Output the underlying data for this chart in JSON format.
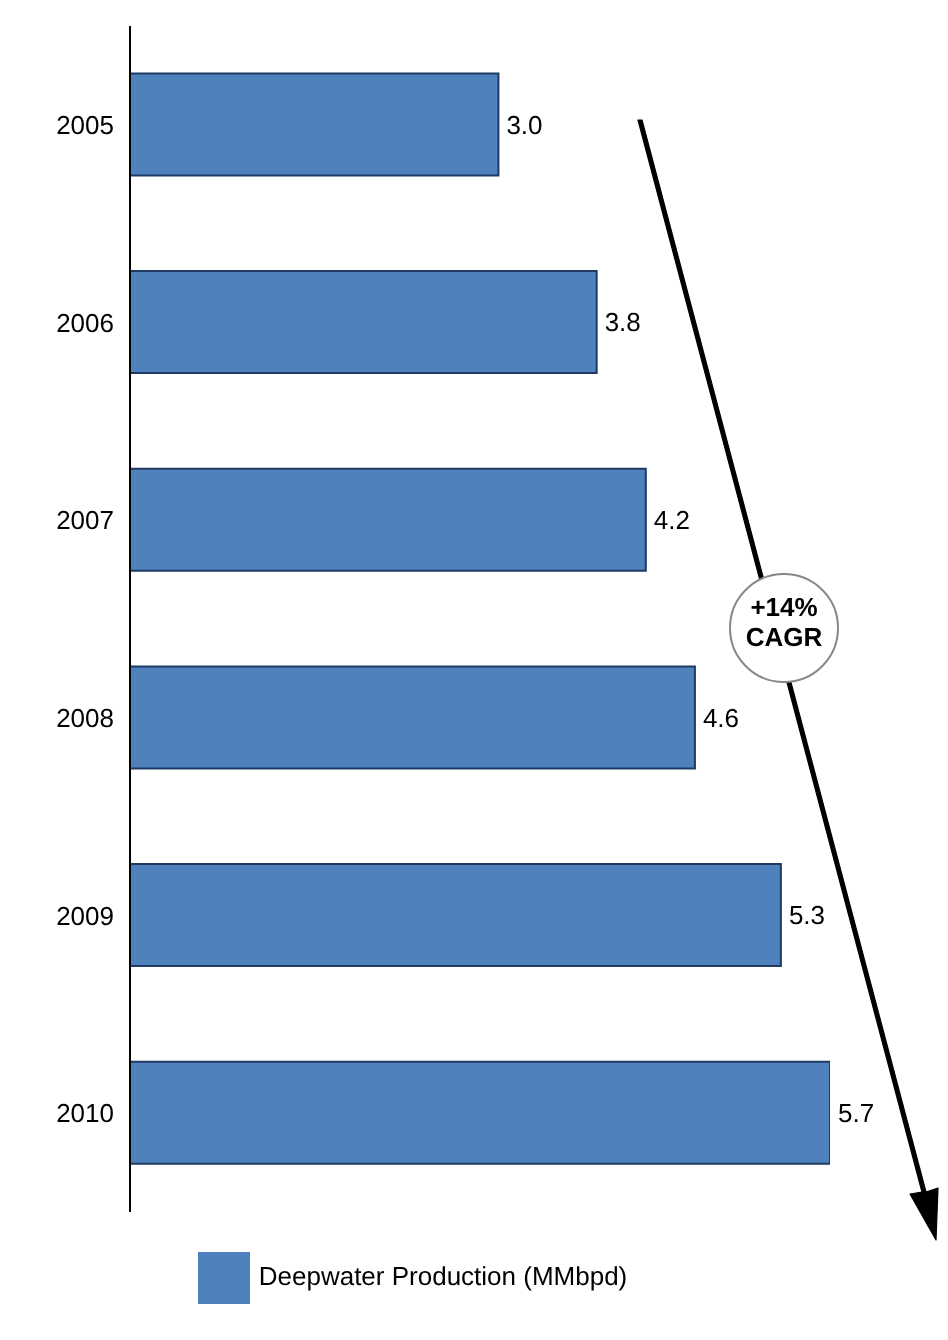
{
  "chart_data": {
    "type": "bar",
    "orientation": "horizontal",
    "categories": [
      "2005",
      "2006",
      "2007",
      "2008",
      "2009",
      "2010"
    ],
    "series": [
      {
        "name": "Deepwater Production (MMbpd)",
        "color": "#4f81bd",
        "values": [
          3.0,
          3.8,
          4.2,
          4.6,
          5.3,
          5.7
        ],
        "value_labels": [
          "3.0",
          "3.8",
          "4.2",
          "4.6",
          "5.3",
          "5.7"
        ]
      }
    ],
    "legend": "bottom",
    "annotations": [
      "+14% CAGR"
    ]
  }
}
